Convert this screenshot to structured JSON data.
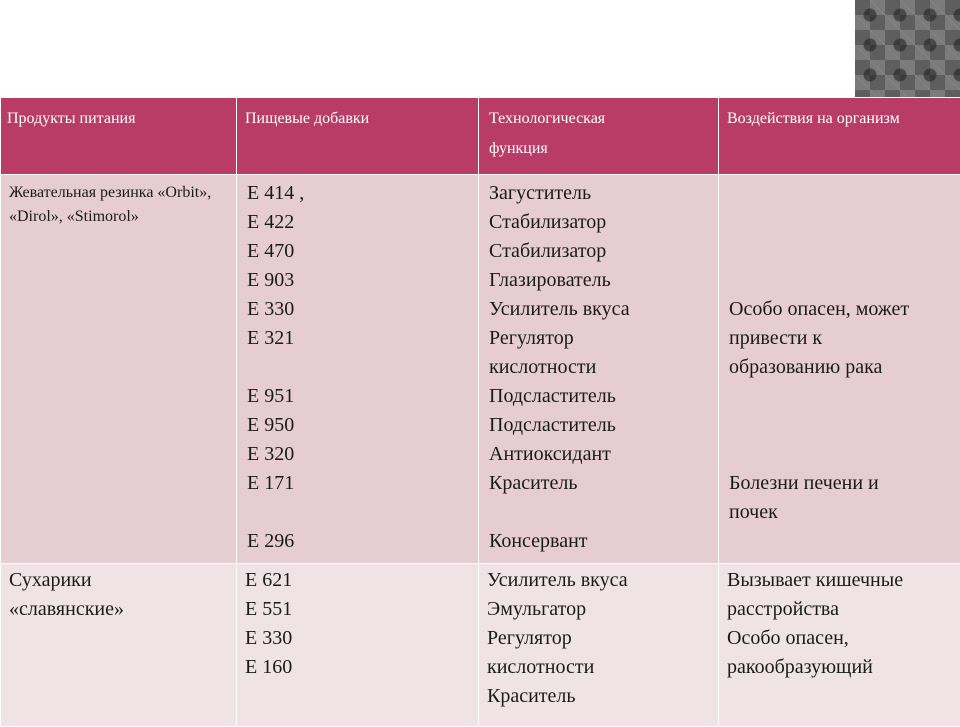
{
  "header": {
    "col1": "Продукты питания",
    "col2": "Пищевые добавки",
    "col3": "Технологическая функция",
    "col4": "Воздействия на организм"
  },
  "rows": [
    {
      "product": "Жевательная резинка «Orbit», «Dirol», «Stimorol»",
      "additives": [
        "Е 414 ,",
        "Е 422",
        "Е 470",
        "Е 903",
        "Е 330",
        "Е 321",
        "",
        "Е 951",
        "Е 950",
        "Е 320",
        "Е 171",
        "",
        "Е 296"
      ],
      "functions": [
        "Загуститель",
        "Стабилизатор",
        "Стабилизатор",
        "Глазирователь",
        "Усилитель вкуса",
        "Регулятор",
        "кислотности",
        "Подсластитель",
        "Подсластитель",
        "Антиоксидант",
        "Краситель",
        "",
        "Консервант"
      ],
      "effects": [
        "",
        "",
        "",
        "",
        "Особо опасен, может",
        "привести к",
        "образованию рака",
        "",
        "",
        "",
        "Болезни печени и",
        "почек"
      ]
    },
    {
      "product": [
        "Сухарики",
        "«славянские»"
      ],
      "additives": [
        "Е 621",
        "Е 551",
        "Е 330",
        "Е 160"
      ],
      "functions": [
        "Усилитель вкуса",
        "Эмульгатор",
        "Регулятор",
        "кислотности",
        "Краситель"
      ],
      "effects": [
        "Вызывает кишечные",
        "расстройства",
        "Особо опасен,",
        "ракообразующий"
      ]
    }
  ]
}
